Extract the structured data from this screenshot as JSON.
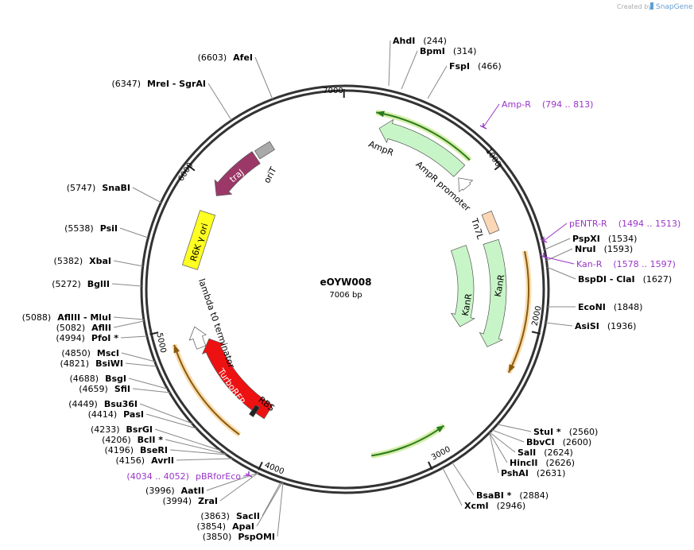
{
  "header": {
    "credit": "Created by",
    "brand": "SnapGene"
  },
  "plasmid": {
    "name": "eOYW008",
    "length": "7006 bp"
  },
  "ticks": [
    1000,
    2000,
    3000,
    4000,
    5000,
    6000,
    7000
  ],
  "enzymes": [
    {
      "name": "AhdI",
      "position": "(244)"
    },
    {
      "name": "BpmI",
      "position": "(314)"
    },
    {
      "name": "FspI",
      "position": "(466)"
    },
    {
      "name": "PspXI",
      "position": "(1534)"
    },
    {
      "name": "NruI",
      "position": "(1593)"
    },
    {
      "name": "BspDI - ClaI",
      "position": "(1627)"
    },
    {
      "name": "EcoNI",
      "position": "(1848)"
    },
    {
      "name": "AsiSI",
      "position": "(1936)"
    },
    {
      "name": "StuI *",
      "position": "(2560)"
    },
    {
      "name": "BbvCI",
      "position": "(2600)"
    },
    {
      "name": "SalI",
      "position": "(2624)"
    },
    {
      "name": "HincII",
      "position": "(2626)"
    },
    {
      "name": "PshAI",
      "position": "(2631)"
    },
    {
      "name": "BsaBI *",
      "position": "(2884)"
    },
    {
      "name": "XcmI",
      "position": "(2946)"
    },
    {
      "name": "AfeI",
      "position": "(6603)"
    },
    {
      "name": "MreI - SgrAI",
      "position": "(6347)"
    },
    {
      "name": "SnaBI",
      "position": "(5747)"
    },
    {
      "name": "PsiI",
      "position": "(5538)"
    },
    {
      "name": "XbaI",
      "position": "(5382)"
    },
    {
      "name": "BglII",
      "position": "(5272)"
    },
    {
      "name": "AflIII - MluI",
      "position": "(5088)"
    },
    {
      "name": "AflII",
      "position": "(5082)"
    },
    {
      "name": "PfoI *",
      "position": "(4994)"
    },
    {
      "name": "MscI",
      "position": "(4850)"
    },
    {
      "name": "BsiWI",
      "position": "(4821)"
    },
    {
      "name": "BsgI",
      "position": "(4688)"
    },
    {
      "name": "SfiI",
      "position": "(4659)"
    },
    {
      "name": "Bsu36I",
      "position": "(4449)"
    },
    {
      "name": "PasI",
      "position": "(4414)"
    },
    {
      "name": "BsrGI",
      "position": "(4233)"
    },
    {
      "name": "BclI *",
      "position": "(4206)"
    },
    {
      "name": "BseRI",
      "position": "(4196)"
    },
    {
      "name": "AvrII",
      "position": "(4156)"
    },
    {
      "name": "AatII",
      "position": "(3996)"
    },
    {
      "name": "ZraI",
      "position": "(3994)"
    },
    {
      "name": "SacII",
      "position": "(3863)"
    },
    {
      "name": "ApaI",
      "position": "(3854)"
    },
    {
      "name": "PspOMI",
      "position": "(3850)"
    }
  ],
  "primers": [
    {
      "name": "Amp-R",
      "range": "(794 .. 813)"
    },
    {
      "name": "pENTR-R",
      "range": "(1494 .. 1513)"
    },
    {
      "name": "Kan-R",
      "range": "(1578 .. 1597)"
    },
    {
      "name": "pBRforEco",
      "range": "(4034 .. 4052)"
    }
  ],
  "features": [
    "AmpR",
    "AmpR promoter",
    "Tn7L",
    "KanR",
    "KanR",
    "TurboRFP",
    "RBS",
    "lambda t0 terminator",
    "R6K γ ori",
    "traJ",
    "oriT"
  ]
}
